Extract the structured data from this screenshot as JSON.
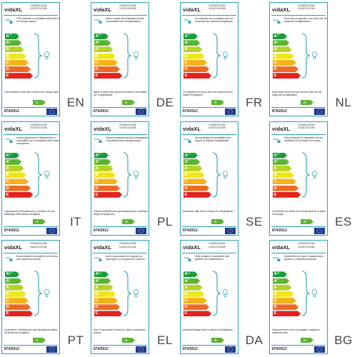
{
  "brand": "vidaXL",
  "models": [
    "242265/242266",
    "242267/242268"
  ],
  "regulation": "874/2012",
  "energy_classes": [
    {
      "letter": "A",
      "plus": "++",
      "color": "#1a9c3a"
    },
    {
      "letter": "A",
      "plus": "+",
      "color": "#5bb431"
    },
    {
      "letter": "A",
      "plus": "",
      "color": "#b7d227"
    },
    {
      "letter": "B",
      "plus": "",
      "color": "#f0e51a"
    },
    {
      "letter": "C",
      "plus": "",
      "color": "#f7b21b"
    },
    {
      "letter": "D",
      "plus": "",
      "color": "#ec6c23"
    },
    {
      "letter": "E",
      "plus": "",
      "color": "#e2231e"
    }
  ],
  "included_bulb": {
    "letter": "A",
    "plus": "+",
    "color": "#5bb431"
  },
  "colors": {
    "border": "#2a9fb4",
    "eu_blue": "#1b3a9a",
    "eu_star": "#f7d116",
    "language_text": "#444444"
  },
  "icons": [
    "ceiling-lamp-icon",
    "bulb-icon",
    "eu-flag-icon"
  ],
  "labels": [
    {
      "lang": "EN",
      "compat": "This luminaire is compatible with bulbs of the energy classes:",
      "sold": "The luminaire is sold with a bulb of the energy class:"
    },
    {
      "lang": "DE",
      "compat": "Diese Leuchte ist kompatibel mit den Leuchtmitteln der Energieklassen:",
      "sold": "Diese Leuchte wird verkauft mit einem Leuchtmittel der Energieklasse:"
    },
    {
      "lang": "FR",
      "compat": "Ce luminaire est compatible avec les ampoules des classes énergétiques:",
      "sold": "Ce luminaire est vendu avec une ampoule de la classe énergétique:"
    },
    {
      "lang": "NL",
      "compat": "Deze lamp is geschikt voor peren van de volgende energieklassen:",
      "sold": "Deze lamp wordt verkocht met een peer van de volgende energieklasse:"
    },
    {
      "lang": "IT",
      "compat": "Questo apparecchio d'illuminazione è compatibile con le lampadine delle classi energetiche:",
      "sold": "L'apparecchio d'illuminazione è venduto con una lampadina della classe energetica:"
    },
    {
      "lang": "PL",
      "compat": "Oprawa oświetleniowa jest kompatybilna z żarówkami klas energetycznych:",
      "sold": "Oprawa oświetleniowa sprzedawana jest z żarówką klasy energetycznej:"
    },
    {
      "lang": "SE",
      "compat": "Denna armatur är kompatibel med lampor av följande energiklasser:",
      "sold": "Armaturen säljs med en lampa av energiklassen:"
    },
    {
      "lang": "ES",
      "compat": "Esta luminaria es compatible con las bombillas de las clases de energía:",
      "sold": "La luminaria se vende con una lámpara de la clase de energía:"
    },
    {
      "lang": "PT",
      "compat": "Esta luminária é compatível com bulbos das classes de energia:",
      "sold": "A luminária é vendida com uma lâmpada da classe de eficiência energética:"
    },
    {
      "lang": "EL",
      "compat": "Αυτό το φωτιστικό είναι συμβατό με λαμπτήρες των ενεργειακών κλάσεων:",
      "sold": "Αυτό το φωτιστικό πωλείται με λάμπα ενεργειακής κλάσης:"
    },
    {
      "lang": "DA",
      "compat": "Dette armatur er kompatibel med lyskilder af energiklasserne:",
      "sold": "Armaturet sælges med en pære af energiklasse:"
    },
    {
      "lang": "BG",
      "compat": "Осветителното тяло е съвместимо с крушки от енергийни класове:",
      "sold": "Осветителното тяло се продава с крушка от енергиен клас:"
    }
  ]
}
